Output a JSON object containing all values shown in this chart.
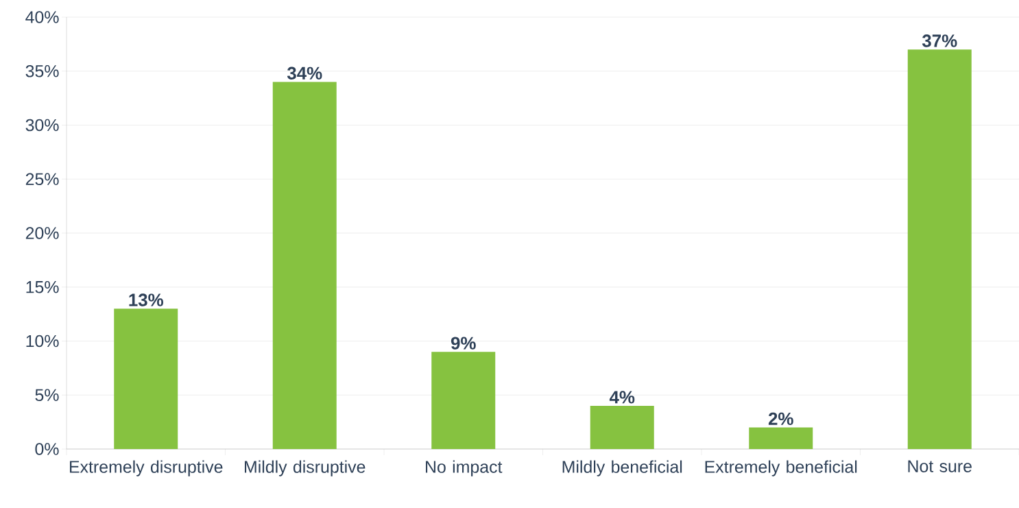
{
  "chart_data": {
    "type": "bar",
    "categories": [
      "Extremely disruptive",
      "Mildly disruptive",
      "No impact",
      "Mildly beneficial",
      "Extremely beneficial",
      "Not sure"
    ],
    "values": [
      13,
      34,
      9,
      4,
      2,
      37
    ],
    "value_labels": [
      "13%",
      "34%",
      "9%",
      "4%",
      "2%",
      "37%"
    ],
    "color": "#86c240",
    "ylim": [
      0,
      40
    ],
    "yticks": [
      {
        "value": 0,
        "label": "0%"
      },
      {
        "value": 5,
        "label": "5%"
      },
      {
        "value": 10,
        "label": "10%"
      },
      {
        "value": 15,
        "label": "15%"
      },
      {
        "value": 20,
        "label": "20%"
      },
      {
        "value": 25,
        "label": "25%"
      },
      {
        "value": 30,
        "label": "30%"
      },
      {
        "value": 35,
        "label": "35%"
      },
      {
        "value": 40,
        "label": "40%"
      }
    ],
    "grid": "y"
  }
}
